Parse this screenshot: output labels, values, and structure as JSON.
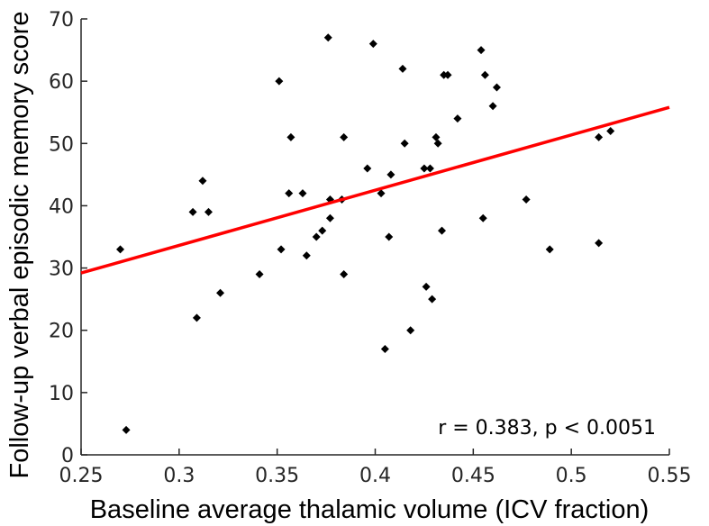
{
  "chart_data": {
    "type": "scatter",
    "title": "",
    "xlabel": "Baseline average thalamic volume (ICV fraction)",
    "ylabel": "Follow-up verbal episodic memory score",
    "xlim": [
      0.25,
      0.55
    ],
    "ylim": [
      0,
      70
    ],
    "xticks": [
      0.25,
      0.3,
      0.35,
      0.4,
      0.45,
      0.5,
      0.55
    ],
    "xtick_labels": [
      "0.25",
      "0.3",
      "0.35",
      "0.4",
      "0.45",
      "0.5",
      "0.55"
    ],
    "yticks": [
      0,
      10,
      20,
      30,
      40,
      50,
      60,
      70
    ],
    "ytick_labels": [
      "0",
      "10",
      "20",
      "30",
      "40",
      "50",
      "60",
      "70"
    ],
    "grid": false,
    "annotation": "r = 0.383, p < 0.0051",
    "points": [
      {
        "x": 0.27,
        "y": 33
      },
      {
        "x": 0.273,
        "y": 4
      },
      {
        "x": 0.307,
        "y": 39
      },
      {
        "x": 0.309,
        "y": 22
      },
      {
        "x": 0.312,
        "y": 44
      },
      {
        "x": 0.315,
        "y": 39
      },
      {
        "x": 0.321,
        "y": 26
      },
      {
        "x": 0.341,
        "y": 29
      },
      {
        "x": 0.351,
        "y": 60
      },
      {
        "x": 0.352,
        "y": 33
      },
      {
        "x": 0.356,
        "y": 42
      },
      {
        "x": 0.357,
        "y": 51
      },
      {
        "x": 0.363,
        "y": 42
      },
      {
        "x": 0.365,
        "y": 32
      },
      {
        "x": 0.37,
        "y": 35
      },
      {
        "x": 0.373,
        "y": 36
      },
      {
        "x": 0.376,
        "y": 67
      },
      {
        "x": 0.377,
        "y": 41
      },
      {
        "x": 0.377,
        "y": 38
      },
      {
        "x": 0.383,
        "y": 41
      },
      {
        "x": 0.384,
        "y": 51
      },
      {
        "x": 0.384,
        "y": 29
      },
      {
        "x": 0.396,
        "y": 46
      },
      {
        "x": 0.399,
        "y": 66
      },
      {
        "x": 0.403,
        "y": 42
      },
      {
        "x": 0.405,
        "y": 17
      },
      {
        "x": 0.407,
        "y": 35
      },
      {
        "x": 0.408,
        "y": 45
      },
      {
        "x": 0.414,
        "y": 62
      },
      {
        "x": 0.415,
        "y": 50
      },
      {
        "x": 0.418,
        "y": 20
      },
      {
        "x": 0.425,
        "y": 46
      },
      {
        "x": 0.426,
        "y": 27
      },
      {
        "x": 0.428,
        "y": 46
      },
      {
        "x": 0.429,
        "y": 25
      },
      {
        "x": 0.431,
        "y": 51
      },
      {
        "x": 0.432,
        "y": 50
      },
      {
        "x": 0.434,
        "y": 36
      },
      {
        "x": 0.435,
        "y": 61
      },
      {
        "x": 0.437,
        "y": 61
      },
      {
        "x": 0.442,
        "y": 54
      },
      {
        "x": 0.454,
        "y": 65
      },
      {
        "x": 0.455,
        "y": 38
      },
      {
        "x": 0.456,
        "y": 61
      },
      {
        "x": 0.46,
        "y": 56
      },
      {
        "x": 0.462,
        "y": 59
      },
      {
        "x": 0.477,
        "y": 41
      },
      {
        "x": 0.489,
        "y": 33
      },
      {
        "x": 0.514,
        "y": 34
      },
      {
        "x": 0.514,
        "y": 51
      },
      {
        "x": 0.52,
        "y": 52
      }
    ],
    "fit_line": {
      "x": [
        0.25,
        0.55
      ],
      "y": [
        29.2,
        55.8
      ],
      "color": "#ff0000"
    },
    "marker_color": "#000000",
    "axis_color": "#262626"
  }
}
